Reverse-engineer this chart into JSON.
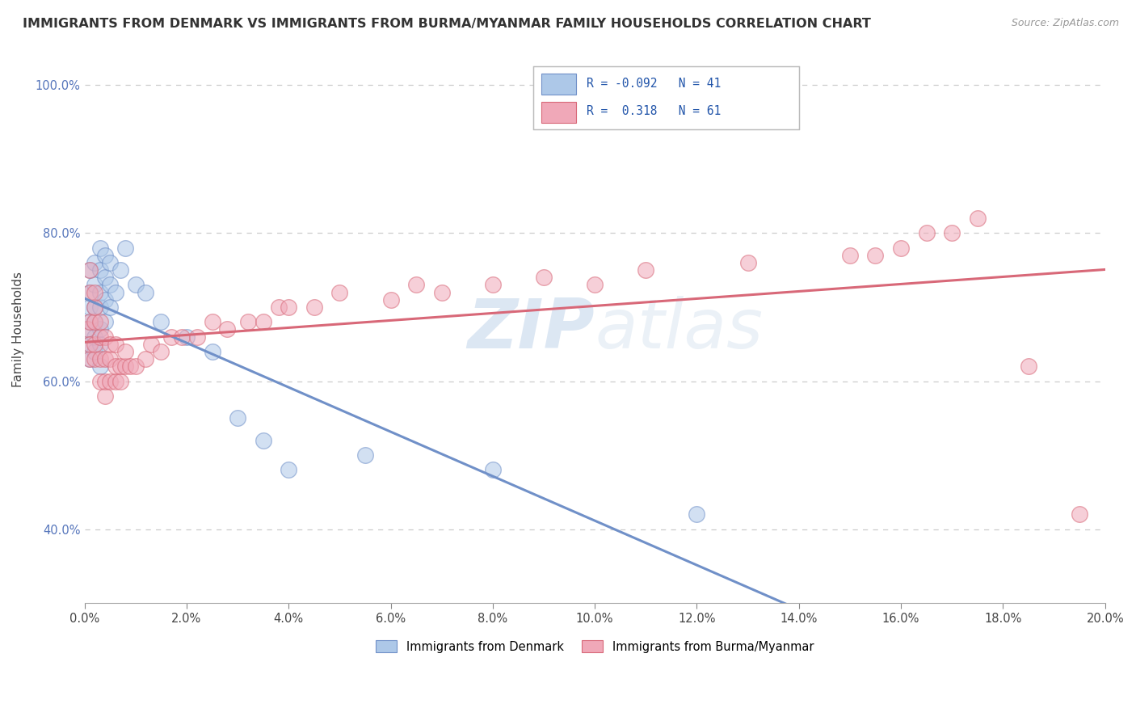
{
  "title": "IMMIGRANTS FROM DENMARK VS IMMIGRANTS FROM BURMA/MYANMAR FAMILY HOUSEHOLDS CORRELATION CHART",
  "source_text": "Source: ZipAtlas.com",
  "ylabel": "Family Households",
  "xlim": [
    0.0,
    0.2
  ],
  "ylim": [
    0.3,
    1.04
  ],
  "xtick_labels": [
    "0.0%",
    "2.0%",
    "4.0%",
    "6.0%",
    "8.0%",
    "10.0%",
    "12.0%",
    "14.0%",
    "16.0%",
    "18.0%",
    "20.0%"
  ],
  "xtick_positions": [
    0.0,
    0.02,
    0.04,
    0.06,
    0.08,
    0.1,
    0.12,
    0.14,
    0.16,
    0.18,
    0.2
  ],
  "ytick_labels": [
    "40.0%",
    "60.0%",
    "80.0%",
    "100.0%"
  ],
  "ytick_positions": [
    0.4,
    0.6,
    0.8,
    1.0
  ],
  "legend_r1": "-0.092",
  "legend_n1": "41",
  "legend_r2": "0.318",
  "legend_n2": "61",
  "blue_color": "#adc8e8",
  "pink_color": "#f0a8b8",
  "blue_line_color": "#7090c8",
  "pink_line_color": "#d86878",
  "watermark_zip": "ZIP",
  "watermark_atlas": "atlas",
  "denmark_x": [
    0.0005,
    0.001,
    0.001,
    0.001,
    0.001,
    0.001,
    0.001,
    0.002,
    0.002,
    0.002,
    0.002,
    0.002,
    0.002,
    0.003,
    0.003,
    0.003,
    0.003,
    0.003,
    0.003,
    0.003,
    0.004,
    0.004,
    0.004,
    0.004,
    0.005,
    0.005,
    0.005,
    0.006,
    0.007,
    0.008,
    0.01,
    0.012,
    0.015,
    0.02,
    0.025,
    0.03,
    0.035,
    0.04,
    0.055,
    0.08,
    0.12
  ],
  "denmark_y": [
    0.67,
    0.63,
    0.65,
    0.68,
    0.7,
    0.72,
    0.75,
    0.64,
    0.66,
    0.68,
    0.7,
    0.73,
    0.76,
    0.62,
    0.65,
    0.67,
    0.7,
    0.72,
    0.75,
    0.78,
    0.68,
    0.71,
    0.74,
    0.77,
    0.7,
    0.73,
    0.76,
    0.72,
    0.75,
    0.78,
    0.73,
    0.72,
    0.68,
    0.66,
    0.64,
    0.55,
    0.52,
    0.48,
    0.5,
    0.48,
    0.42
  ],
  "burma_x": [
    0.0005,
    0.001,
    0.001,
    0.001,
    0.001,
    0.001,
    0.002,
    0.002,
    0.002,
    0.002,
    0.002,
    0.003,
    0.003,
    0.003,
    0.003,
    0.004,
    0.004,
    0.004,
    0.004,
    0.005,
    0.005,
    0.005,
    0.006,
    0.006,
    0.006,
    0.007,
    0.007,
    0.008,
    0.008,
    0.009,
    0.01,
    0.012,
    0.013,
    0.015,
    0.017,
    0.019,
    0.022,
    0.025,
    0.028,
    0.032,
    0.035,
    0.038,
    0.04,
    0.045,
    0.05,
    0.06,
    0.065,
    0.07,
    0.08,
    0.09,
    0.1,
    0.11,
    0.13,
    0.15,
    0.155,
    0.16,
    0.165,
    0.17,
    0.175,
    0.185,
    0.195
  ],
  "burma_y": [
    0.67,
    0.63,
    0.65,
    0.68,
    0.72,
    0.75,
    0.63,
    0.65,
    0.68,
    0.7,
    0.72,
    0.6,
    0.63,
    0.66,
    0.68,
    0.58,
    0.6,
    0.63,
    0.66,
    0.6,
    0.63,
    0.65,
    0.6,
    0.62,
    0.65,
    0.6,
    0.62,
    0.62,
    0.64,
    0.62,
    0.62,
    0.63,
    0.65,
    0.64,
    0.66,
    0.66,
    0.66,
    0.68,
    0.67,
    0.68,
    0.68,
    0.7,
    0.7,
    0.7,
    0.72,
    0.71,
    0.73,
    0.72,
    0.73,
    0.74,
    0.73,
    0.75,
    0.76,
    0.77,
    0.77,
    0.78,
    0.8,
    0.8,
    0.82,
    0.62,
    0.42
  ]
}
